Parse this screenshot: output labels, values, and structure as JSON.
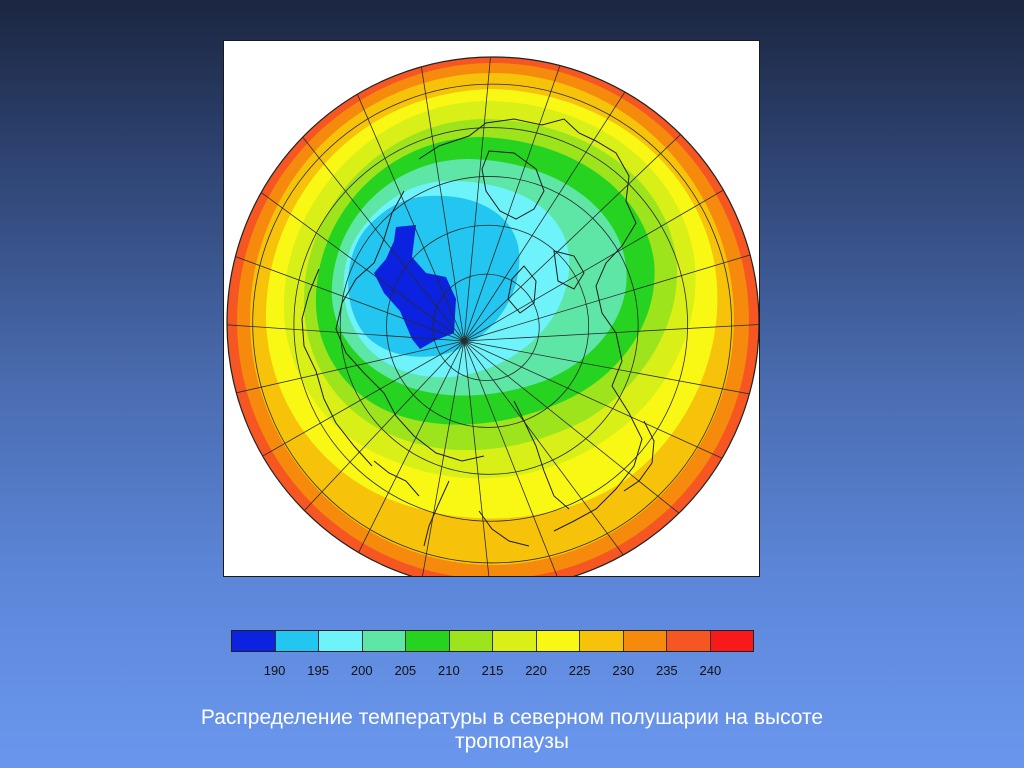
{
  "map": {
    "projection": "polar-orthographic-north",
    "palette": [
      "#0b22e0",
      "#22c6f0",
      "#6ff3fb",
      "#5ee6a6",
      "#25d320",
      "#9ee41c",
      "#d9ef18",
      "#f9f814",
      "#f7c20a",
      "#f58a0c",
      "#f55622",
      "#f81a1a"
    ],
    "features": [
      "graticule",
      "coastlines",
      "cold-core-over-greenland",
      "warm-ring-equatorward"
    ]
  },
  "legend": {
    "ticks": [
      "190",
      "195",
      "200",
      "205",
      "210",
      "215",
      "220",
      "225",
      "230",
      "235",
      "240"
    ]
  },
  "caption": {
    "line1": "Распределение температуры в северном полушарии на высоте",
    "line2": "тропопаузы"
  }
}
